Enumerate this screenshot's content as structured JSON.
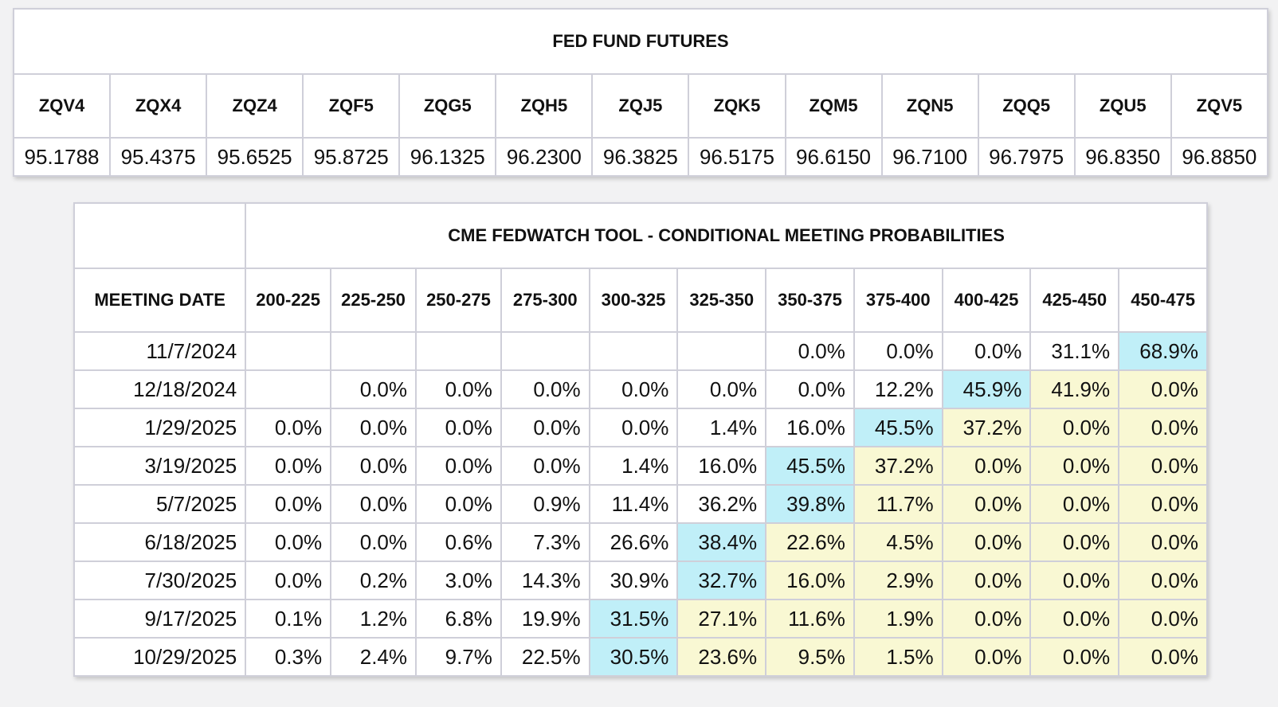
{
  "futures": {
    "title": "FED FUND FUTURES",
    "contracts": [
      "ZQV4",
      "ZQX4",
      "ZQZ4",
      "ZQF5",
      "ZQG5",
      "ZQH5",
      "ZQJ5",
      "ZQK5",
      "ZQM5",
      "ZQN5",
      "ZQQ5",
      "ZQU5",
      "ZQV5"
    ],
    "prices": [
      "95.1788",
      "95.4375",
      "95.6525",
      "95.8725",
      "96.1325",
      "96.2300",
      "96.3825",
      "96.5175",
      "96.6150",
      "96.7100",
      "96.7975",
      "96.8350",
      "96.8850"
    ]
  },
  "fedwatch": {
    "title": "CME FEDWATCH TOOL - CONDITIONAL MEETING PROBABILITIES",
    "meeting_header": "MEETING DATE",
    "ranges": [
      "200-225",
      "225-250",
      "250-275",
      "275-300",
      "300-325",
      "325-350",
      "350-375",
      "375-400",
      "400-425",
      "425-450",
      "450-475"
    ],
    "colors": {
      "highest": "#c0eff8",
      "above_highest": "#f9f8d3"
    },
    "rows": [
      {
        "date": "11/7/2024",
        "values": [
          "",
          "",
          "",
          "",
          "",
          "",
          "0.0%",
          "0.0%",
          "0.0%",
          "31.1%",
          "68.9%"
        ],
        "max_index": 10
      },
      {
        "date": "12/18/2024",
        "values": [
          "",
          "0.0%",
          "0.0%",
          "0.0%",
          "0.0%",
          "0.0%",
          "0.0%",
          "12.2%",
          "45.9%",
          "41.9%",
          "0.0%"
        ],
        "max_index": 8
      },
      {
        "date": "1/29/2025",
        "values": [
          "0.0%",
          "0.0%",
          "0.0%",
          "0.0%",
          "0.0%",
          "1.4%",
          "16.0%",
          "45.5%",
          "37.2%",
          "0.0%",
          "0.0%"
        ],
        "max_index": 7
      },
      {
        "date": "3/19/2025",
        "values": [
          "0.0%",
          "0.0%",
          "0.0%",
          "0.0%",
          "1.4%",
          "16.0%",
          "45.5%",
          "37.2%",
          "0.0%",
          "0.0%",
          "0.0%"
        ],
        "max_index": 6
      },
      {
        "date": "5/7/2025",
        "values": [
          "0.0%",
          "0.0%",
          "0.0%",
          "0.9%",
          "11.4%",
          "36.2%",
          "39.8%",
          "11.7%",
          "0.0%",
          "0.0%",
          "0.0%"
        ],
        "max_index": 6
      },
      {
        "date": "6/18/2025",
        "values": [
          "0.0%",
          "0.0%",
          "0.6%",
          "7.3%",
          "26.6%",
          "38.4%",
          "22.6%",
          "4.5%",
          "0.0%",
          "0.0%",
          "0.0%"
        ],
        "max_index": 5
      },
      {
        "date": "7/30/2025",
        "values": [
          "0.0%",
          "0.2%",
          "3.0%",
          "14.3%",
          "30.9%",
          "32.7%",
          "16.0%",
          "2.9%",
          "0.0%",
          "0.0%",
          "0.0%"
        ],
        "max_index": 5
      },
      {
        "date": "9/17/2025",
        "values": [
          "0.1%",
          "1.2%",
          "6.8%",
          "19.9%",
          "31.5%",
          "27.1%",
          "11.6%",
          "1.9%",
          "0.0%",
          "0.0%",
          "0.0%"
        ],
        "max_index": 4
      },
      {
        "date": "10/29/2025",
        "values": [
          "0.3%",
          "2.4%",
          "9.7%",
          "22.5%",
          "30.5%",
          "23.6%",
          "9.5%",
          "1.5%",
          "0.0%",
          "0.0%",
          "0.0%"
        ],
        "max_index": 4
      }
    ]
  }
}
